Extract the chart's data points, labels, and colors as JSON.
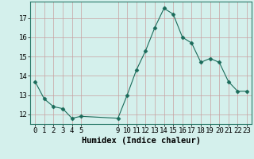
{
  "x": [
    0,
    1,
    2,
    3,
    4,
    5,
    9,
    10,
    11,
    12,
    13,
    14,
    15,
    16,
    17,
    18,
    19,
    20,
    21,
    22,
    23
  ],
  "y": [
    13.7,
    12.8,
    12.4,
    12.3,
    11.8,
    11.9,
    11.8,
    13.0,
    14.3,
    15.3,
    16.5,
    17.5,
    17.2,
    16.0,
    15.7,
    14.7,
    14.9,
    14.7,
    13.7,
    13.2,
    13.2
  ],
  "xlabel": "Humidex (Indice chaleur)",
  "yticks": [
    12,
    13,
    14,
    15,
    16,
    17
  ],
  "xticks": [
    0,
    1,
    2,
    3,
    4,
    5,
    9,
    10,
    11,
    12,
    13,
    14,
    15,
    16,
    17,
    18,
    19,
    20,
    21,
    22,
    23
  ],
  "ylim": [
    11.5,
    17.85
  ],
  "xlim": [
    -0.5,
    23.5
  ],
  "line_color": "#1a6b5a",
  "marker": "D",
  "marker_size": 2.5,
  "bg_color": "#d4f0ec",
  "grid_color": "#c8a0a0",
  "xlabel_fontsize": 7.5,
  "tick_fontsize": 6.5
}
